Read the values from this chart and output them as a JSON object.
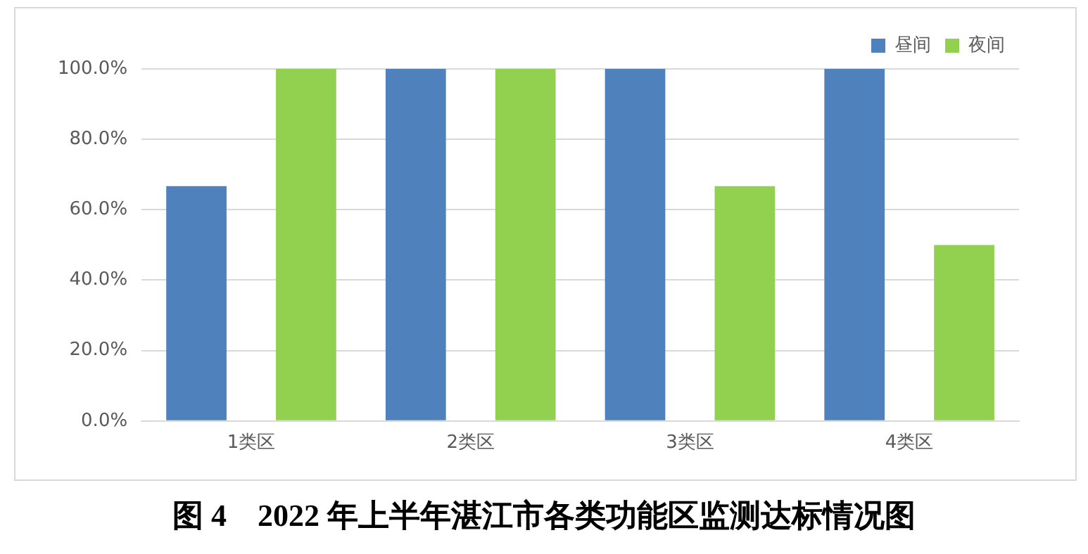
{
  "chart_data": {
    "type": "bar",
    "title": "图 4　2022 年上半年湛江市各类功能区监测达标情况图",
    "categories": [
      "1类区",
      "2类区",
      "3类区",
      "4类区"
    ],
    "series": [
      {
        "name": "昼间",
        "color": "#4f81bd",
        "values": [
          66.7,
          100,
          100,
          100
        ]
      },
      {
        "name": "夜间",
        "color": "#92d050",
        "values": [
          100,
          100,
          66.7,
          50
        ]
      }
    ],
    "ylim": [
      0,
      100
    ],
    "yticks": [
      {
        "value": 0,
        "label": "0.0%"
      },
      {
        "value": 20,
        "label": "20.0%"
      },
      {
        "value": 40,
        "label": "40.0%"
      },
      {
        "value": 60,
        "label": "60.0%"
      },
      {
        "value": 80,
        "label": "80.0%"
      },
      {
        "value": 100,
        "label": "100.0%"
      }
    ],
    "grid": "y",
    "legend": "top right"
  }
}
